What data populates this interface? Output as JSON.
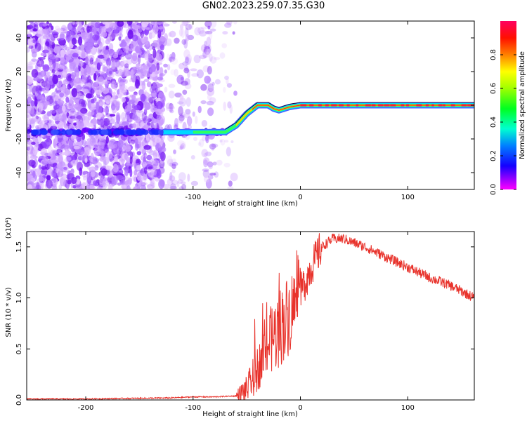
{
  "title": "GN02.2023.259.07.35.G30",
  "chart_data": [
    {
      "type": "heatmap",
      "xlabel": "Height of straight line (km)",
      "ylabel": "Frequency (Hz)",
      "xlim": [
        -255,
        162
      ],
      "ylim": [
        -50,
        50
      ],
      "xticks": [
        -200,
        -100,
        0,
        100
      ],
      "yticks": [
        -40,
        -20,
        0,
        20,
        40
      ],
      "colorbar": {
        "label": "Normalized spectral amplitude",
        "range": [
          0,
          1
        ],
        "ticks": [
          "0.0",
          "0.2",
          "0.4",
          "0.6",
          "0.8"
        ]
      },
      "ridge": {
        "x": [
          -255,
          -70,
          -60,
          -50,
          -40,
          -30,
          -25,
          -20,
          -10,
          0,
          162
        ],
        "y": [
          -16,
          -16,
          -12,
          -5,
          0,
          0,
          -2,
          -3,
          -1,
          0,
          0
        ]
      },
      "noise_region_x": [
        -255,
        -70
      ]
    },
    {
      "type": "line",
      "xlabel": "Height of straight line (km)",
      "ylabel": "SNR (10 * v/v)",
      "y_multiplier": "(x10⁴)",
      "xlim": [
        -255,
        162
      ],
      "ylim": [
        0,
        1.65
      ],
      "xticks": [
        -200,
        -100,
        0,
        100
      ],
      "yticks": [
        "0.0",
        "0.5",
        "1.0",
        "1.5"
      ],
      "color": "#e8322b",
      "series": [
        {
          "x": [
            -255,
            -200,
            -120,
            -100,
            -80,
            -60,
            -50,
            -40,
            -30,
            -20,
            -10,
            0,
            10,
            20,
            30,
            40,
            60,
            80,
            100,
            120,
            140,
            162
          ],
          "y": [
            0.01,
            0.01,
            0.02,
            0.03,
            0.03,
            0.04,
            0.1,
            0.3,
            0.55,
            0.7,
            0.85,
            1.05,
            1.3,
            1.5,
            1.58,
            1.58,
            1.5,
            1.4,
            1.3,
            1.2,
            1.12,
            1.0
          ]
        }
      ]
    }
  ]
}
